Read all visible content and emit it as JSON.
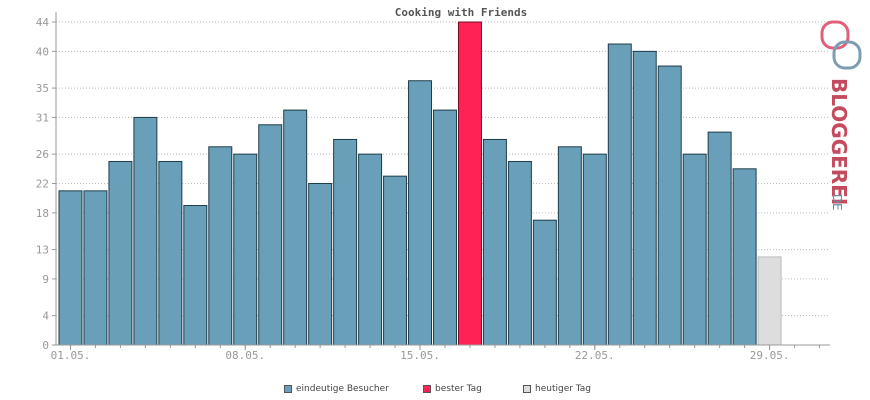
{
  "chart_data": {
    "type": "bar",
    "title": "Cooking with Friends",
    "xlabel": "",
    "ylabel": "",
    "ylim": [
      0,
      44
    ],
    "yticks": [
      0,
      4,
      9,
      13,
      18,
      22,
      26,
      31,
      35,
      40,
      44
    ],
    "grid": true,
    "legend_placement": "bottom-center",
    "x_tick_labels": [
      {
        "index": 0,
        "label": "01.05."
      },
      {
        "index": 7,
        "label": "08.05."
      },
      {
        "index": 14,
        "label": "15.05."
      },
      {
        "index": 21,
        "label": "22.05."
      },
      {
        "index": 28,
        "label": "29.05."
      }
    ],
    "values": [
      21,
      21,
      25,
      31,
      25,
      19,
      27,
      26,
      30,
      32,
      22,
      28,
      26,
      23,
      36,
      32,
      44,
      28,
      25,
      17,
      27,
      26,
      41,
      40,
      38,
      26,
      29,
      24,
      12
    ],
    "kinds": [
      "n",
      "n",
      "n",
      "n",
      "n",
      "n",
      "n",
      "n",
      "n",
      "n",
      "n",
      "n",
      "n",
      "n",
      "n",
      "n",
      "best",
      "n",
      "n",
      "n",
      "n",
      "n",
      "n",
      "n",
      "n",
      "n",
      "n",
      "n",
      "today"
    ],
    "slots": 31,
    "colors": {
      "normal": "#6a9fb9",
      "best": "#ff2255",
      "today": "#dddddd",
      "normal_stroke": "#1e3c4a",
      "best_stroke": "#7a0a26",
      "today_stroke": "#bbbbbb"
    },
    "legend": [
      {
        "label": "eindeutige Besucher",
        "color": "#6a9fb9"
      },
      {
        "label": "bester Tag",
        "color": "#ff2255"
      },
      {
        "label": "heutiger Tag",
        "color": "#dddddd"
      }
    ]
  },
  "logo": {
    "text": "BLOGGEREI",
    "suffix": ".DE"
  }
}
